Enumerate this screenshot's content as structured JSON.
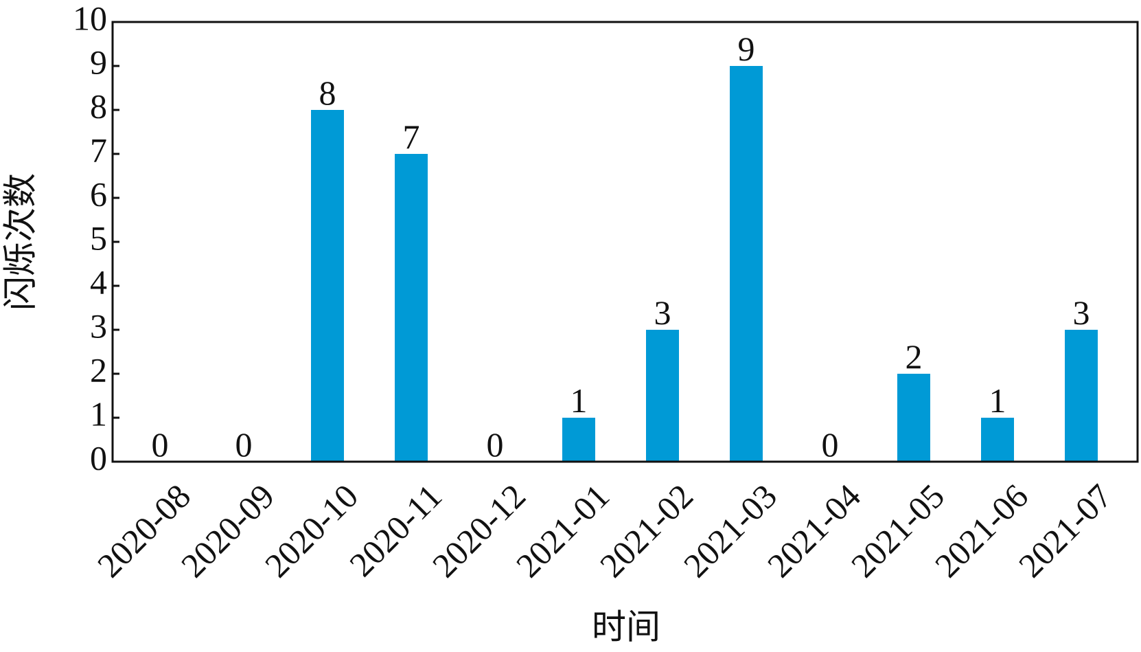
{
  "chart_data": {
    "type": "bar",
    "x_label": "时间",
    "y_label": "闪烁次数",
    "categories": [
      "2020-08",
      "2020-09",
      "2020-10",
      "2020-11",
      "2020-12",
      "2021-01",
      "2021-02",
      "2021-03",
      "2021-04",
      "2021-05",
      "2021-06",
      "2021-07"
    ],
    "values": [
      0,
      0,
      8,
      7,
      0,
      1,
      3,
      9,
      0,
      2,
      1,
      3
    ],
    "color": "#009ad6",
    "ylim": [
      0,
      10
    ],
    "yticks": [
      0,
      1,
      2,
      3,
      4,
      5,
      6,
      7,
      8,
      9,
      10
    ],
    "grid": false
  }
}
